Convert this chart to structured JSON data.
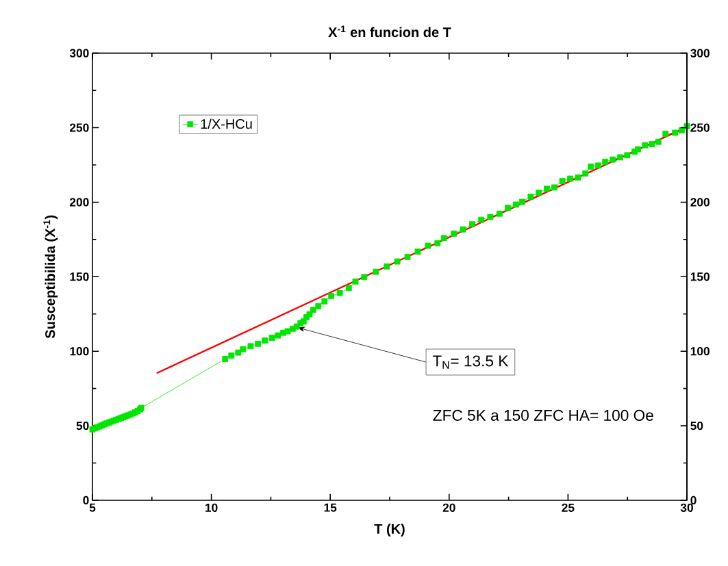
{
  "chart_data": {
    "type": "line",
    "title": "X$^{-1}$ en funcion de T",
    "xlabel": "T (K)",
    "ylabel": "Susceptibilida (X$^{-1}$)",
    "xlim": [
      5,
      30
    ],
    "xticks": [
      5,
      10,
      15,
      20,
      25,
      30
    ],
    "ylim": [
      0,
      300
    ],
    "yticks": [
      0,
      50,
      100,
      150,
      200,
      250,
      300
    ],
    "y2lim": [
      0,
      300
    ],
    "y2ticks": [
      0,
      50,
      100,
      150,
      200,
      250,
      300
    ],
    "marker": "square",
    "line_style": "solid",
    "legend": "top left",
    "series": [
      {
        "name": "1/X-HCu",
        "color": "#00e600",
        "x": [
          5.0,
          5.1,
          5.2,
          5.3,
          5.4,
          5.5,
          5.6,
          5.7,
          5.8,
          5.9,
          6.0,
          6.1,
          6.2,
          6.3,
          6.4,
          6.5,
          6.6,
          6.7,
          6.8,
          6.9,
          7.0,
          7.05,
          10.58,
          10.84,
          11.13,
          11.33,
          11.65,
          11.96,
          12.25,
          12.55,
          12.8,
          13.02,
          13.21,
          13.42,
          13.59,
          13.75,
          13.88,
          14.0,
          14.13,
          14.28,
          14.5,
          14.76,
          15.04,
          15.4,
          15.78,
          16.06,
          16.43,
          16.92,
          17.38,
          17.82,
          18.25,
          18.68,
          19.11,
          19.51,
          19.78,
          20.2,
          20.58,
          20.97,
          21.35,
          21.73,
          22.12,
          22.47,
          22.81,
          23.07,
          23.43,
          23.77,
          24.11,
          24.42,
          24.76,
          25.09,
          25.42,
          25.73,
          25.96,
          26.27,
          26.56,
          26.88,
          27.19,
          27.49,
          27.8,
          27.94,
          28.24,
          28.53,
          28.8,
          29.1,
          29.5,
          29.78,
          30.0
        ],
        "values": [
          47.6,
          48.3,
          49.0,
          49.6,
          50.3,
          51.0,
          51.6,
          52.2,
          52.8,
          53.4,
          54.0,
          54.6,
          55.2,
          55.8,
          56.4,
          57.0,
          57.6,
          58.3,
          59.0,
          59.9,
          61.0,
          62.0,
          94.8,
          97.1,
          99.1,
          101.4,
          103.4,
          105.0,
          107.2,
          109.0,
          110.6,
          112.4,
          113.4,
          115.1,
          116.6,
          118.9,
          120.0,
          122.8,
          124.8,
          127.7,
          130.3,
          133.5,
          137.0,
          139.1,
          142.4,
          146.8,
          149.8,
          153.3,
          156.9,
          160.2,
          163.3,
          166.8,
          170.8,
          172.5,
          175.9,
          178.9,
          181.7,
          185.2,
          188.2,
          190.1,
          192.3,
          196.2,
          198.4,
          200.2,
          203.7,
          206.4,
          209.0,
          209.9,
          214.2,
          215.8,
          216.6,
          219.3,
          223.9,
          224.6,
          227.1,
          228.6,
          230.1,
          231.5,
          233.9,
          235.5,
          238.2,
          239.0,
          240.5,
          245.9,
          246.6,
          248.2,
          250.9
        ]
      },
      {
        "marker": "none",
        "color": "#ff0000",
        "x": [
          7.7,
          30.0
        ],
        "values": [
          85.3,
          250.5
        ]
      }
    ],
    "annotations": [
      {
        "text": "T$_{N}$= 13.5 K",
        "x": 13.6,
        "y": 116
      },
      "ZFC 5K a 150 ZFC HA= 100 Oe"
    ]
  }
}
